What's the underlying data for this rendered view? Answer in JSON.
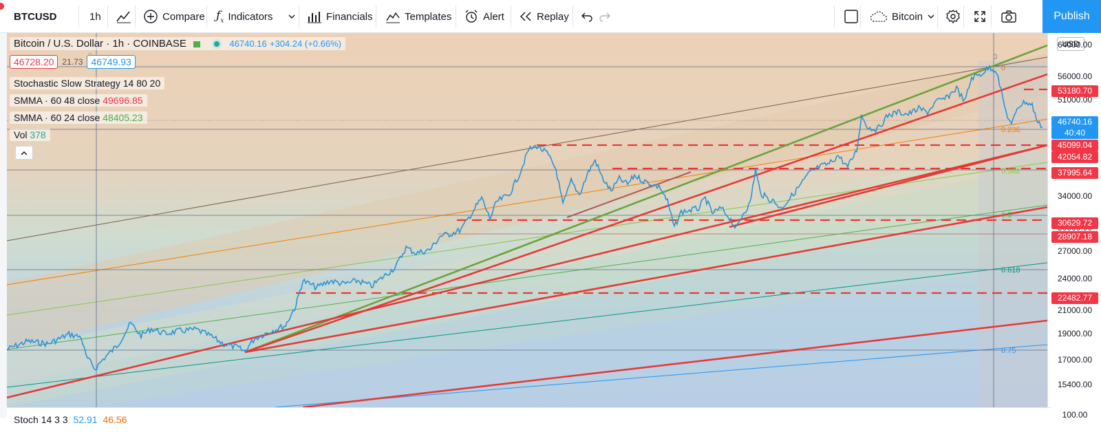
{
  "toolbar": {
    "symbol": "BTCUSD",
    "interval": "1h",
    "compare": "Compare",
    "indicators": "Indicators",
    "financials": "Financials",
    "templates": "Templates",
    "alert": "Alert",
    "replay": "Replay",
    "layout_name": "Bitcoin",
    "publish": "Publish"
  },
  "legend": {
    "title": "Bitcoin / U.S. Dollar",
    "interval": "1h",
    "exchange": "COINBASE",
    "last": "46740.16",
    "change": "+304.24 (+0.66%)",
    "bid": "46728.20",
    "spread": "21.73",
    "ask": "46749.93",
    "strategy": "Stochastic Slow Strategy 14 80 20",
    "smma1_label": "SMMA · 60 48 close",
    "smma1_value": "49696.85",
    "smma2_label": "SMMA · 60 24 close",
    "smma2_value": "48405.23",
    "vol_label": "Vol",
    "vol_value": "378"
  },
  "stoch": {
    "label": "Stoch 14 3 3",
    "k": "52.91",
    "d": "46.56"
  },
  "axis": {
    "currency": "USD",
    "ticks": [
      "64000.00",
      "56000.00",
      "51000.00",
      "34000.00",
      "30000.00",
      "27000.00",
      "24000.00",
      "21000.00",
      "19000.00",
      "17000.00",
      "15400.00",
      "100.00"
    ],
    "price_tags": [
      {
        "label": "53180.70",
        "color": "#f23645"
      },
      {
        "label": "46740.16",
        "color": "#2196f3"
      },
      {
        "label": "40:40",
        "color": "#2196f3"
      },
      {
        "label": "45099.04",
        "color": "#f23645"
      },
      {
        "label": "42054.82",
        "color": "#f23645"
      },
      {
        "label": "37995.64",
        "color": "#f23645"
      },
      {
        "label": "30629.72",
        "color": "#f23645"
      },
      {
        "label": "28907.18",
        "color": "#f23645"
      },
      {
        "label": "22482.77",
        "color": "#f23645"
      }
    ]
  },
  "fib_labels": [
    "0",
    "0",
    "0.236",
    "0.382",
    "0.5",
    "0.618",
    "0.75",
    "0"
  ],
  "colors": {
    "accent": "#2196f3",
    "red": "#f23645",
    "green": "#4caf50",
    "price": "#2196f3"
  }
}
